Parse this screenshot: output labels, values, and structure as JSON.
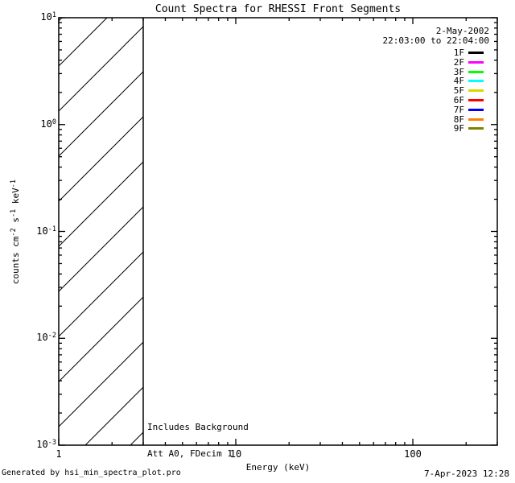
{
  "footer": {
    "generator": "Generated by hsi_min_spectra_plot.pro",
    "timestamp": "7-Apr-2023 12:28"
  },
  "chart_data": {
    "type": "line",
    "title": "Count Spectra for RHESSI Front Segments",
    "xlabel": "Energy (keV)",
    "ylabel_segments": [
      {
        "text": "counts cm"
      },
      {
        "sup": "-2"
      },
      {
        "text": " s"
      },
      {
        "sup": "-1"
      },
      {
        "text": " keV"
      },
      {
        "sup": "-1"
      }
    ],
    "xscale": "log",
    "yscale": "log",
    "xlim": [
      1,
      300
    ],
    "ylim": [
      0.001,
      10
    ],
    "grid": false,
    "frame_color": "#000000",
    "background_color": "#ffffff",
    "x_major_ticks": [
      1,
      10,
      100
    ],
    "x_tick_labels": [
      "1",
      "10",
      "100"
    ],
    "y_major_tick_exponents": [
      1,
      0,
      -1,
      -2,
      -3
    ],
    "hatched_region": {
      "x_start": 1,
      "x_end": 3,
      "style": "diagonal-hatch",
      "fill": "none"
    },
    "series_note": "no spectra curves are drawn in the plot area; only the hatched low-energy region is shown",
    "legend": {
      "position": "top-right",
      "date_line1": "2-May-2002",
      "date_line2": "22:03:00 to 22:04:00",
      "entries": [
        {
          "label": "1F",
          "color": "#000000"
        },
        {
          "label": "2F",
          "color": "#ff00ff"
        },
        {
          "label": "3F",
          "color": "#00ff00"
        },
        {
          "label": "4F",
          "color": "#00ffff"
        },
        {
          "label": "5F",
          "color": "#d9d900"
        },
        {
          "label": "6F",
          "color": "#ff0000"
        },
        {
          "label": "7F",
          "color": "#0000ff"
        },
        {
          "label": "8F",
          "color": "#ff8000"
        },
        {
          "label": "9F",
          "color": "#808000"
        }
      ]
    },
    "annotations": [
      "Includes Background",
      "Att A0, FDecim 1"
    ]
  }
}
